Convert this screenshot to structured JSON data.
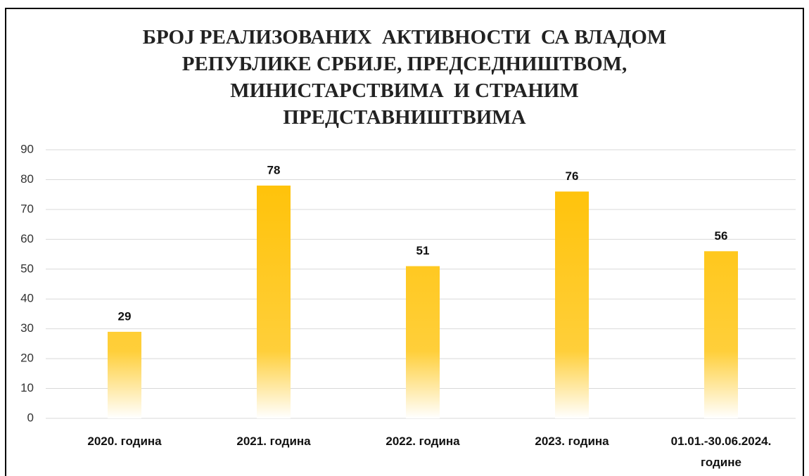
{
  "chart_data": {
    "type": "bar",
    "title": [
      "БРОЈ РЕАЛИЗОВАНИХ  АКТИВНОСТИ  СА ВЛАДОМ",
      "РЕПУБЛИКЕ СРБИЈЕ, ПРЕДСЕДНИШТВОМ,",
      "МИНИСТАРСТВИМА  И СТРАНИМ",
      "ПРЕДСТАВНИШТВИМА"
    ],
    "categories": [
      "2020. година",
      "2021. година",
      "2022. година",
      "2023. година",
      "01.01.-30.06.2024. године"
    ],
    "values": [
      29,
      78,
      51,
      76,
      56
    ],
    "color": "#FFC000",
    "ylim": [
      0,
      90
    ],
    "yticks": [
      0,
      10,
      20,
      30,
      40,
      50,
      60,
      70,
      80,
      90
    ],
    "grid": true
  }
}
